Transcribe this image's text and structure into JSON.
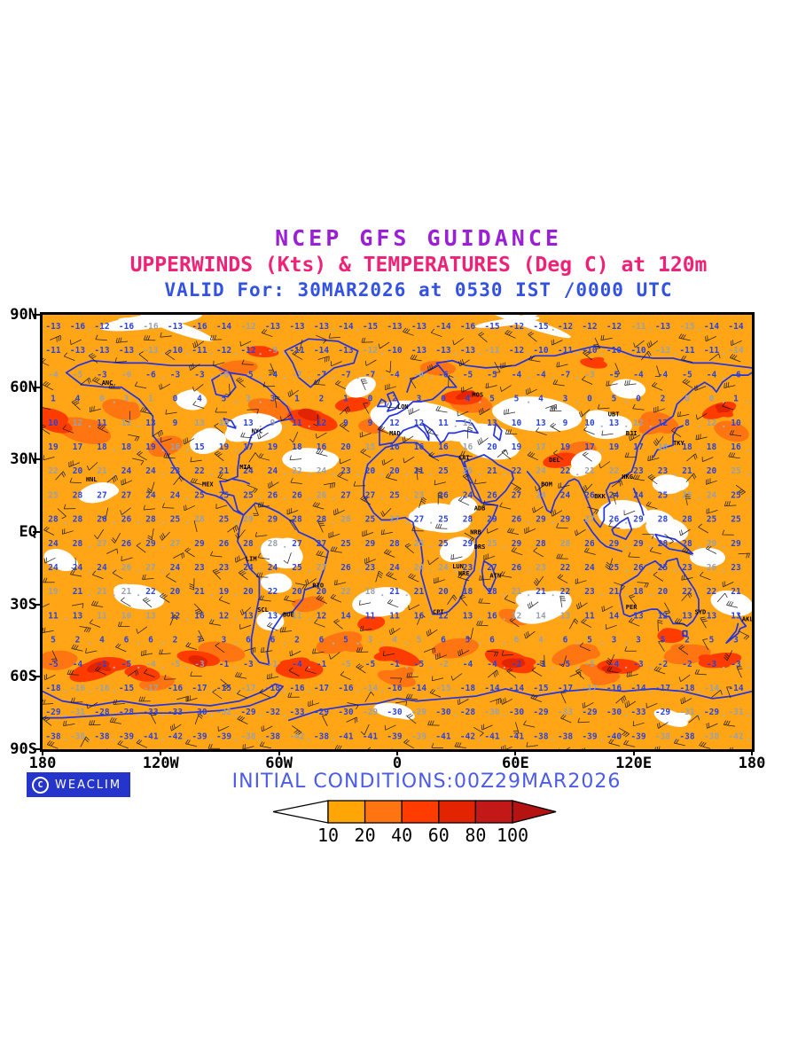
{
  "header": {
    "title": "NCEP GFS GUIDANCE",
    "subtitle": "UPPERWINDS (Kts) & TEMPERATURES (Deg C) at 120m",
    "valid_line": "VALID For: 30MAR2026 at 0530 IST /0000 UTC"
  },
  "footer": {
    "credit_symbol": "C",
    "credit_badge": "WEACLIM",
    "initial_conditions": "INITIAL CONDITIONS:00Z29MAR2026"
  },
  "axes": {
    "y_ticks": [
      "90N",
      "60N",
      "30N",
      "EQ",
      "30S",
      "60S",
      "90S"
    ],
    "x_ticks": [
      "180",
      "120W",
      "60W",
      "0",
      "60E",
      "120E",
      "180"
    ]
  },
  "colorbar": {
    "labels": [
      "10",
      "20",
      "40",
      "60",
      "80",
      "100"
    ],
    "segment_colors": [
      "#FFA505",
      "#FF7512",
      "#FF3C00",
      "#E32400",
      "#C21818"
    ],
    "arrow_left_color": "#FFFFFF",
    "arrow_right_color": "#B51212"
  },
  "colors": {
    "title": "#9A1FD6",
    "subtitle": "#EE2277",
    "valid": "#3452E1",
    "initial": "#4C5CE6",
    "badge_bg": "#2535CC",
    "coastline": "#2433E0",
    "temp_number": "#2B43DE",
    "temp_number_alt": "#98A1AE",
    "barb": "#151515",
    "shading_base": "#FFA516"
  },
  "chart_data": {
    "type": "heatmap",
    "title": "NCEP GFS GUIDANCE",
    "subtitle": "UPPERWINDS (Kts) & TEMPERATURES (Deg C) at 120m",
    "valid": "VALID For: 30MAR2026 at 0530 IST /0000 UTC",
    "initial_conditions": "INITIAL CONDITIONS:00Z29MAR2026",
    "projection": "equirectangular world map, 180W to 180E, 90S to 90N",
    "x_tick_labels": [
      "180",
      "120W",
      "60W",
      "0",
      "60E",
      "120E",
      "180"
    ],
    "y_tick_labels": [
      "90N",
      "60N",
      "30N",
      "EQ",
      "30S",
      "60S",
      "90S"
    ],
    "wind_speed_scale_kts": [
      10,
      20,
      40,
      60,
      80,
      100
    ],
    "wind_speed_colors": [
      "#FFA505",
      "#FF7512",
      "#FF3C00",
      "#E32400",
      "#C21818"
    ],
    "temperature_profile": {
      "lats": [
        85,
        75,
        65,
        55,
        45,
        35,
        25,
        15,
        5,
        -5,
        -15,
        -25,
        -35,
        -45,
        -55,
        -65,
        -75,
        -85
      ],
      "temps_c": [
        -14,
        -12,
        -6,
        2,
        10,
        17,
        22,
        25,
        27,
        27,
        25,
        21,
        14,
        5,
        -2,
        -15,
        -30,
        -40
      ]
    },
    "legend_units": "Kts"
  },
  "map": {
    "stations": [
      {
        "code": "ANC",
        "lon": -150,
        "lat": 61
      },
      {
        "code": "NYC",
        "lon": -74,
        "lat": 41
      },
      {
        "code": "MIA",
        "lon": -80,
        "lat": 26
      },
      {
        "code": "MEX",
        "lon": -99,
        "lat": 19
      },
      {
        "code": "LIM",
        "lon": -77,
        "lat": -12
      },
      {
        "code": "SCL",
        "lon": -71,
        "lat": -33
      },
      {
        "code": "BUE",
        "lon": -58,
        "lat": -35
      },
      {
        "code": "RIO",
        "lon": -43,
        "lat": -23
      },
      {
        "code": "LON",
        "lon": 0,
        "lat": 51
      },
      {
        "code": "MAD",
        "lon": -4,
        "lat": 40
      },
      {
        "code": "CAI",
        "lon": 31,
        "lat": 30
      },
      {
        "code": "NRB",
        "lon": 37,
        "lat": -1
      },
      {
        "code": "CPT",
        "lon": 18,
        "lat": -34
      },
      {
        "code": "MOS",
        "lon": 38,
        "lat": 56
      },
      {
        "code": "DEL",
        "lon": 77,
        "lat": 29
      },
      {
        "code": "BOM",
        "lon": 73,
        "lat": 19
      },
      {
        "code": "BKK",
        "lon": 100,
        "lat": 14
      },
      {
        "code": "HKG",
        "lon": 114,
        "lat": 22
      },
      {
        "code": "TKY",
        "lon": 140,
        "lat": 36
      },
      {
        "code": "SYD",
        "lon": 151,
        "lat": -34
      },
      {
        "code": "AKL",
        "lon": 175,
        "lat": -37
      },
      {
        "code": "HNL",
        "lon": -158,
        "lat": 21
      },
      {
        "code": "ADB",
        "lon": 39,
        "lat": 9
      },
      {
        "code": "DRS",
        "lon": 39,
        "lat": -7
      },
      {
        "code": "LUN",
        "lon": 28,
        "lat": -15
      },
      {
        "code": "HRE",
        "lon": 31,
        "lat": -18
      },
      {
        "code": "ATN",
        "lon": 47,
        "lat": -19
      },
      {
        "code": "PER",
        "lon": 116,
        "lat": -32
      },
      {
        "code": "UBT",
        "lon": 107,
        "lat": 48
      },
      {
        "code": "BJI",
        "lon": 116,
        "lat": 40
      }
    ]
  }
}
